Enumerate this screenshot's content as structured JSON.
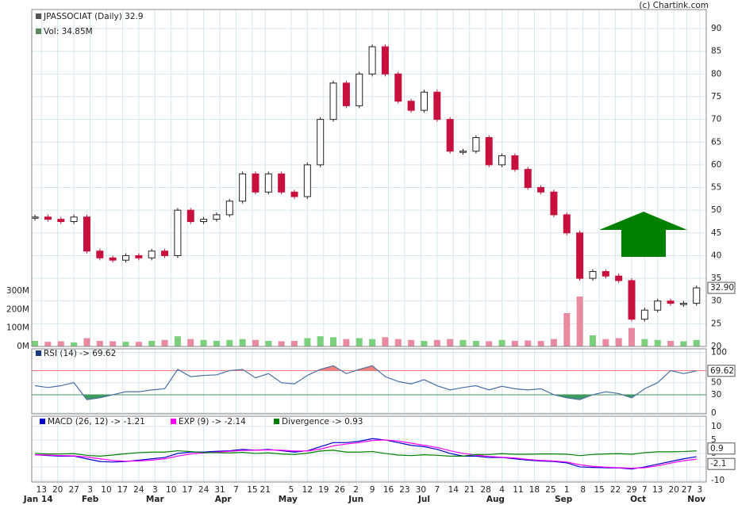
{
  "copyright": "(c) Chartink.com",
  "chart_data": [
    {
      "type": "candlestick",
      "title": "JPASSOCIAT (Daily) 32.9",
      "volume_label": "Vol: 34.85M",
      "last_label": "32.90",
      "x": [
        0,
        4,
        8,
        12,
        16,
        20,
        24,
        28,
        32,
        36,
        40,
        44,
        48,
        52,
        56,
        60,
        64,
        68,
        72,
        76,
        80,
        84,
        88,
        92,
        96,
        100,
        104,
        108,
        112,
        116,
        120,
        124,
        128,
        132,
        136,
        140,
        144,
        148,
        152,
        156,
        160,
        164,
        168,
        172,
        176,
        180,
        184,
        188,
        192,
        196,
        200,
        204
      ],
      "series": [
        {
          "values": [
            48.5,
            48,
            47.5,
            48.5,
            41,
            39.5,
            39,
            40,
            39.5,
            41,
            40,
            50,
            47.5,
            48,
            49,
            52,
            58,
            54,
            58,
            54,
            53,
            60,
            70,
            78,
            73,
            80,
            86,
            80,
            74,
            72,
            76,
            70,
            63,
            63,
            66,
            60,
            62,
            59,
            55,
            54,
            49,
            45,
            35,
            36.5,
            35.5,
            34.5,
            26,
            28,
            30,
            29.5,
            29.5,
            32.9
          ],
          "up_color": "#ffffff",
          "down_color": "#c8103e"
        }
      ],
      "xlim": [
        -1,
        207
      ],
      "xticks": [
        {
          "value": 2,
          "label": "13"
        },
        {
          "value": 7,
          "label": "20"
        },
        {
          "value": 12,
          "label": "27"
        },
        {
          "value": 17,
          "label": "3"
        },
        {
          "value": 22,
          "label": "10"
        },
        {
          "value": 27,
          "label": "17"
        },
        {
          "value": 32,
          "label": "24"
        },
        {
          "value": 37,
          "label": "3"
        },
        {
          "value": 42,
          "label": "10"
        },
        {
          "value": 47,
          "label": "17"
        },
        {
          "value": 52,
          "label": "24"
        },
        {
          "value": 57,
          "label": "31"
        },
        {
          "value": 62,
          "label": "7"
        },
        {
          "value": 67,
          "label": "15"
        },
        {
          "value": 71,
          "label": "21"
        },
        {
          "value": 79,
          "label": "5"
        },
        {
          "value": 84,
          "label": "12"
        },
        {
          "value": 89,
          "label": "19"
        },
        {
          "value": 94,
          "label": "26"
        },
        {
          "value": 99,
          "label": "2"
        },
        {
          "value": 104,
          "label": "9"
        },
        {
          "value": 109,
          "label": "16"
        },
        {
          "value": 114,
          "label": "23"
        },
        {
          "value": 119,
          "label": "30"
        },
        {
          "value": 124,
          "label": "7"
        },
        {
          "value": 129,
          "label": "14"
        },
        {
          "value": 134,
          "label": "21"
        },
        {
          "value": 139,
          "label": "28"
        },
        {
          "value": 144,
          "label": "4"
        },
        {
          "value": 149,
          "label": "11"
        },
        {
          "value": 154,
          "label": "18"
        },
        {
          "value": 159,
          "label": "25"
        },
        {
          "value": 164,
          "label": "1"
        },
        {
          "value": 169,
          "label": "8"
        },
        {
          "value": 174,
          "label": "15"
        },
        {
          "value": 179,
          "label": "22"
        },
        {
          "value": 184,
          "label": "29"
        },
        {
          "value": 188,
          "label": "7"
        },
        {
          "value": 192,
          "label": "13"
        },
        {
          "value": 197,
          "label": "20"
        },
        {
          "value": 201,
          "label": "27"
        },
        {
          "value": 205,
          "label": "3"
        }
      ],
      "month_ticks": [
        {
          "value": 1,
          "label": "Jan 14"
        },
        {
          "value": 17,
          "label": "Feb"
        },
        {
          "value": 37,
          "label": "Mar"
        },
        {
          "value": 58,
          "label": "Apr"
        },
        {
          "value": 78,
          "label": "May"
        },
        {
          "value": 99,
          "label": "Jun"
        },
        {
          "value": 120,
          "label": "Jul"
        },
        {
          "value": 142,
          "label": "Aug"
        },
        {
          "value": 163,
          "label": "Sep"
        },
        {
          "value": 186,
          "label": "Oct"
        },
        {
          "value": 204,
          "label": "Nov"
        }
      ],
      "ylim": [
        20,
        94.2
      ],
      "yticks": [
        20,
        25,
        30,
        35,
        40,
        45,
        50,
        55,
        60,
        65,
        70,
        75,
        80,
        85,
        90
      ],
      "grid": true
    },
    {
      "type": "bar",
      "x": [
        0,
        4,
        8,
        12,
        16,
        20,
        24,
        28,
        32,
        36,
        40,
        44,
        48,
        52,
        56,
        60,
        64,
        68,
        72,
        76,
        80,
        84,
        88,
        92,
        96,
        100,
        104,
        108,
        112,
        116,
        120,
        124,
        128,
        132,
        136,
        140,
        144,
        148,
        152,
        156,
        160,
        164,
        168,
        172,
        176,
        180,
        184,
        188,
        192,
        196,
        200,
        204
      ],
      "values": [
        30,
        25,
        28,
        22,
        45,
        30,
        28,
        25,
        25,
        30,
        35,
        55,
        40,
        35,
        30,
        35,
        40,
        35,
        30,
        28,
        30,
        45,
        55,
        50,
        40,
        45,
        40,
        50,
        40,
        35,
        30,
        35,
        40,
        35,
        30,
        28,
        35,
        30,
        32,
        30,
        40,
        180,
        270,
        60,
        40,
        45,
        100,
        40,
        35,
        30,
        28,
        34.85
      ],
      "up_color": "#7ccf7c",
      "down_color": "#e88aa0",
      "ylim": [
        0,
        1820
      ],
      "yticks": [
        {
          "value": 0,
          "label": "0M"
        },
        {
          "value": 100,
          "label": "100M"
        },
        {
          "value": 200,
          "label": "200M"
        },
        {
          "value": 300,
          "label": "300M"
        }
      ]
    },
    {
      "type": "line",
      "title": "RSI (14) -> 69.62",
      "last_label": "69.62",
      "x": [
        0,
        4,
        8,
        12,
        16,
        20,
        24,
        28,
        32,
        36,
        40,
        44,
        48,
        52,
        56,
        60,
        64,
        68,
        72,
        76,
        80,
        84,
        88,
        92,
        96,
        100,
        104,
        108,
        112,
        116,
        120,
        124,
        128,
        132,
        136,
        140,
        144,
        148,
        152,
        156,
        160,
        164,
        168,
        172,
        176,
        180,
        184,
        188,
        192,
        196,
        200,
        204
      ],
      "values": [
        45,
        42,
        45,
        50,
        22,
        25,
        30,
        35,
        35,
        38,
        40,
        72,
        60,
        62,
        63,
        70,
        72,
        58,
        65,
        50,
        48,
        62,
        72,
        78,
        65,
        72,
        78,
        60,
        52,
        48,
        55,
        45,
        38,
        42,
        45,
        38,
        44,
        40,
        38,
        40,
        30,
        25,
        22,
        30,
        35,
        32,
        25,
        40,
        50,
        70,
        65,
        69.62
      ],
      "color": "#4a6fa5",
      "ylim": [
        -1.5,
        106
      ],
      "yticks": [
        0,
        30,
        50,
        70,
        100
      ],
      "overbought": 70,
      "oversold": 30,
      "overbought_color": "#f08080",
      "oversold_color": "#3c9a5c"
    },
    {
      "type": "macd",
      "last_labels": [
        "0.9",
        "-2.1"
      ],
      "x": [
        0,
        4,
        8,
        12,
        16,
        20,
        24,
        28,
        32,
        36,
        40,
        44,
        48,
        52,
        56,
        60,
        64,
        68,
        72,
        76,
        80,
        84,
        88,
        92,
        96,
        100,
        104,
        108,
        112,
        116,
        120,
        124,
        128,
        132,
        136,
        140,
        144,
        148,
        152,
        156,
        160,
        164,
        168,
        172,
        176,
        180,
        184,
        188,
        192,
        196,
        200,
        204
      ],
      "series": [
        {
          "name": "MACD (26, 12) -> -1.21",
          "color": "#0000cc",
          "values": [
            -0.5,
            -0.8,
            -1,
            -1,
            -2,
            -3,
            -3.2,
            -3,
            -2.5,
            -2,
            -1.5,
            0,
            0.5,
            0.5,
            0.8,
            1,
            1.5,
            1.2,
            1.5,
            1,
            0.5,
            1,
            2.5,
            4,
            4,
            4.5,
            5.5,
            5,
            4,
            3,
            2.5,
            1.5,
            0,
            -1,
            -1,
            -1.5,
            -1.5,
            -2,
            -2.5,
            -2.8,
            -3,
            -3.5,
            -5,
            -5.2,
            -5.3,
            -5.4,
            -5.8,
            -5,
            -4,
            -3,
            -2,
            -1.21
          ]
        },
        {
          "name": "EXP (9) -> -2.14",
          "color": "#ff00ff",
          "values": [
            -0.5,
            -0.6,
            -0.8,
            -0.9,
            -1.3,
            -2,
            -2.6,
            -2.9,
            -2.8,
            -2.5,
            -2,
            -1,
            -0.2,
            0.2,
            0.5,
            0.8,
            1.1,
            1.2,
            1.3,
            1.2,
            0.9,
            0.9,
            1.6,
            2.8,
            3.5,
            4,
            4.8,
            5,
            4.6,
            3.8,
            3,
            2.2,
            1,
            0,
            -0.6,
            -1.1,
            -1.4,
            -1.7,
            -2.2,
            -2.6,
            -2.8,
            -3.2,
            -4.2,
            -4.8,
            -5.1,
            -5.3,
            -5.5,
            -5.3,
            -4.6,
            -3.6,
            -2.7,
            -2.14
          ]
        },
        {
          "name": "Divergence -> 0.93",
          "color": "#008000",
          "values": [
            0,
            -0.2,
            -0.2,
            -0.1,
            -0.7,
            -1,
            -0.6,
            -0.1,
            0.3,
            0.5,
            0.5,
            1,
            0.7,
            0.3,
            0.3,
            0.2,
            0.4,
            0,
            0.2,
            -0.2,
            -0.4,
            0.1,
            0.9,
            1.2,
            0.5,
            0.5,
            0.7,
            0,
            -0.6,
            -0.8,
            -0.5,
            -0.7,
            -1,
            -1,
            -0.4,
            -0.4,
            -0.1,
            -0.3,
            -0.3,
            -0.2,
            -0.2,
            -0.3,
            -0.8,
            -0.4,
            -0.2,
            -0.1,
            -0.3,
            0.3,
            0.6,
            0.6,
            0.7,
            0.93
          ]
        }
      ],
      "ylim": [
        -10.6,
        13.8
      ],
      "yticks": [
        10,
        5,
        0,
        -5,
        -10
      ]
    }
  ]
}
